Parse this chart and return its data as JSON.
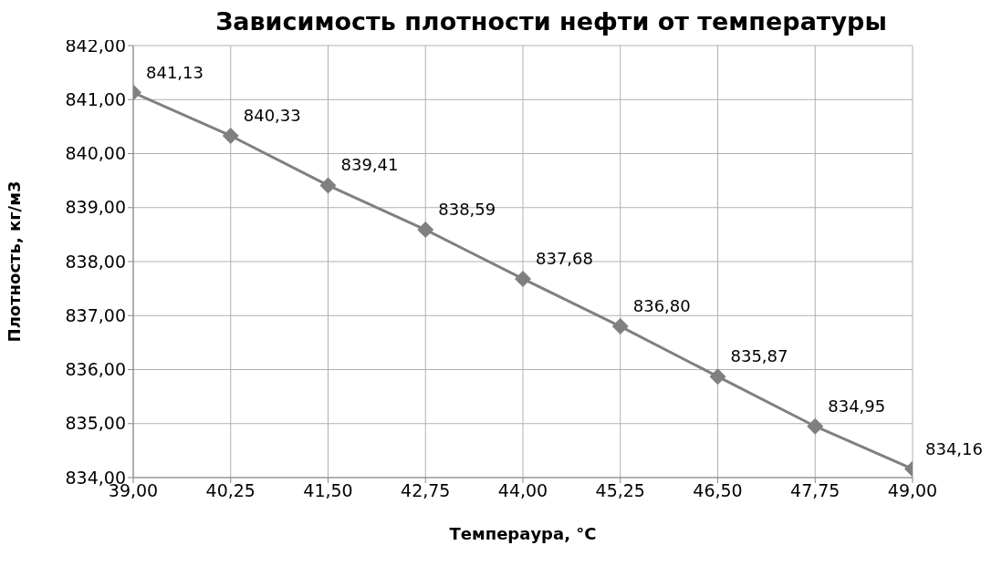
{
  "chart_data": {
    "type": "line",
    "title": "Зависимость плотности нефти от температуры",
    "xlabel": "Темпераура, °C",
    "ylabel": "Плотность, кг/м3",
    "x": [
      39,
      40.25,
      41.5,
      42.75,
      44,
      45.25,
      46.5,
      47.75,
      49
    ],
    "series": [
      {
        "color": "#808080",
        "values": [
          841.13,
          840.33,
          839.41,
          838.59,
          837.68,
          836.8,
          835.87,
          834.95,
          834.16
        ],
        "value_labels": [
          "841,13",
          "840,33",
          "839,41",
          "838,59",
          "837,68",
          "836,80",
          "835,87",
          "834,95",
          "834,16"
        ]
      }
    ],
    "xlim": [
      39,
      49
    ],
    "xticks": [
      {
        "value": 39,
        "label": "39,00"
      },
      {
        "value": 40.25,
        "label": "40,25"
      },
      {
        "value": 41.5,
        "label": "41,50"
      },
      {
        "value": 42.75,
        "label": "42,75"
      },
      {
        "value": 44,
        "label": "44,00"
      },
      {
        "value": 45.25,
        "label": "45,25"
      },
      {
        "value": 46.5,
        "label": "46,50"
      },
      {
        "value": 47.75,
        "label": "47,75"
      },
      {
        "value": 49,
        "label": "49,00"
      }
    ],
    "ylim": [
      834,
      842
    ],
    "yticks": [
      {
        "value": 834,
        "label": "834,00"
      },
      {
        "value": 835,
        "label": "835,00"
      },
      {
        "value": 836,
        "label": "836,00"
      },
      {
        "value": 837,
        "label": "837,00"
      },
      {
        "value": 838,
        "label": "838,00"
      },
      {
        "value": 839,
        "label": "839,00"
      },
      {
        "value": 840,
        "label": "840,00"
      },
      {
        "value": 841,
        "label": "841,00"
      },
      {
        "value": 842,
        "label": "842,00"
      }
    ],
    "grid": true,
    "marker": "diamond",
    "line_style": "solid",
    "legend": false
  }
}
